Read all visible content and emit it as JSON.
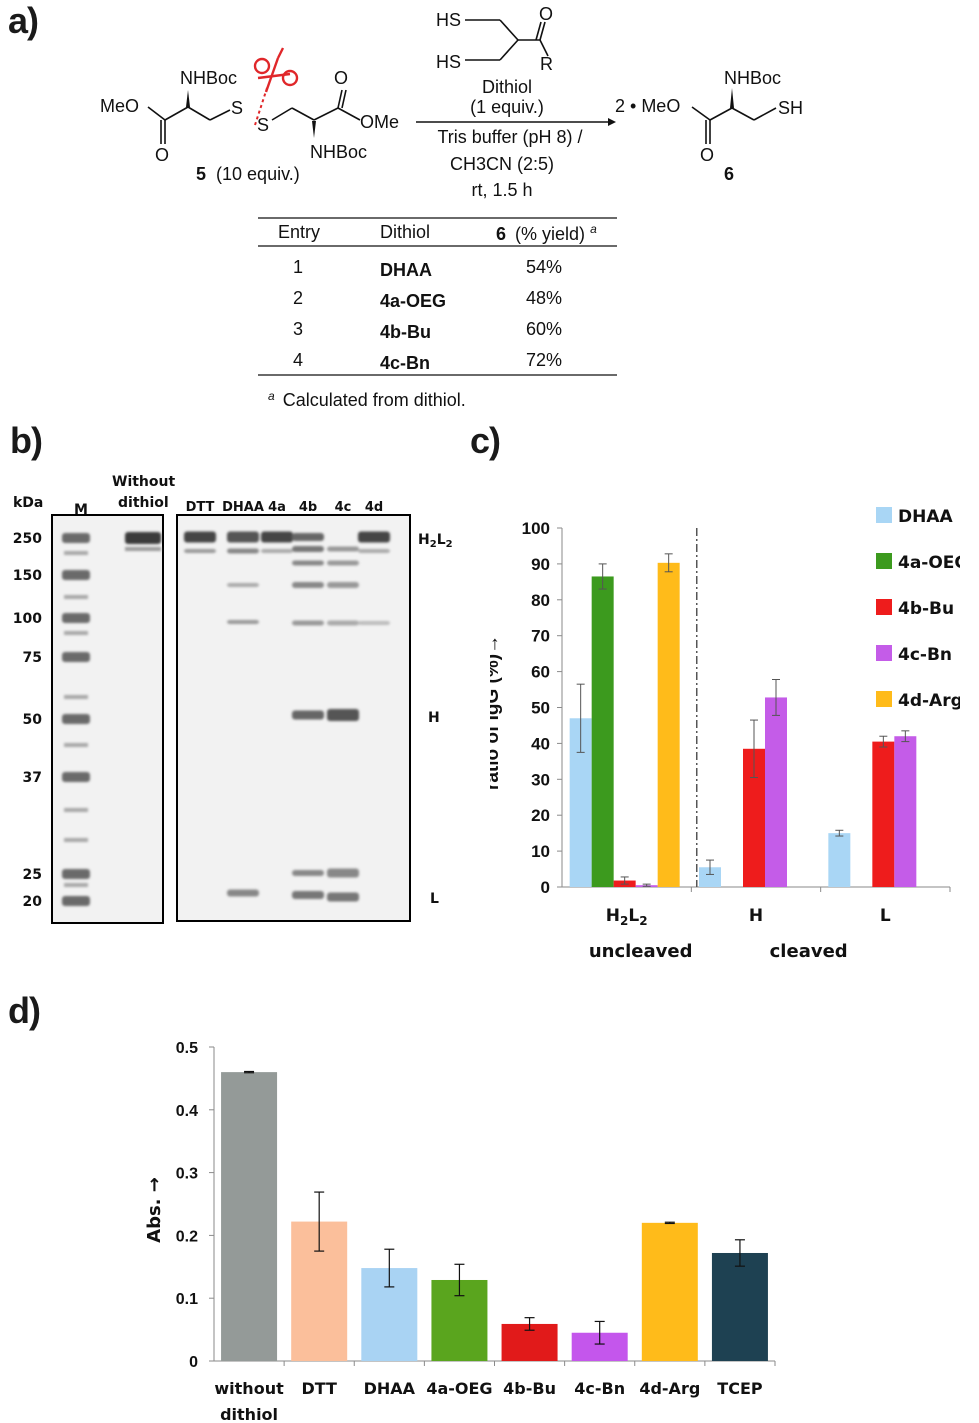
{
  "panels": {
    "a": "a)",
    "b": "b)",
    "c": "c)",
    "d": "d)"
  },
  "scheme": {
    "reactant_label": "5",
    "reactant_equiv": "(10 equiv.)",
    "reactant_groups": {
      "meo": "MeO",
      "ome": "OMe",
      "nhboc": "NHBoc",
      "o": "O",
      "s": "S"
    },
    "reagent_groups": {
      "hs": "HS",
      "o": "O",
      "r": "R"
    },
    "reagent_lines": [
      "Dithiol",
      "(1 equiv.)",
      "Tris buffer (pH 8) /",
      "CH3CN (2:5)",
      "rt, 1.5 h"
    ],
    "product_coef": "2 • MeO",
    "product_label": "6",
    "product_groups": {
      "nhboc": "NHBoc",
      "sh": "SH",
      "o": "O"
    },
    "table": {
      "headers": [
        "Entry",
        "Dithiol",
        "6",
        "(% yield)",
        "a"
      ],
      "rows": [
        {
          "entry": "1",
          "dithiol": "DHAA",
          "yield": "54%"
        },
        {
          "entry": "2",
          "dithiol": "4a-OEG",
          "yield": "48%"
        },
        {
          "entry": "3",
          "dithiol": "4b-Bu",
          "yield": "60%"
        },
        {
          "entry": "4",
          "dithiol": "4c-Bn",
          "yield": "72%"
        }
      ],
      "footnote_mark": "a",
      "footnote": "Calculated from dithiol."
    }
  },
  "gel": {
    "kda_label": "kDa",
    "marker_label": "M",
    "without_label_1": "Without",
    "without_label_2": "dithiol",
    "lanes": [
      "DTT",
      "DHAA",
      "4a",
      "4b",
      "4c",
      "4d"
    ],
    "mw_markers": [
      "250",
      "150",
      "100",
      "75",
      "50",
      "37",
      "25",
      "20"
    ],
    "band_labels": {
      "h2l2": "H2L2",
      "h": "H",
      "l": "L"
    }
  },
  "chart_data": [
    {
      "type": "bar",
      "panel": "c",
      "ylabel": "ratio of IgG (%)→",
      "ylim": [
        0,
        100
      ],
      "yticks": [
        0,
        10,
        20,
        30,
        40,
        50,
        60,
        70,
        80,
        90,
        100
      ],
      "categories": [
        "H2L2",
        "H",
        "L"
      ],
      "group_labels": [
        "uncleaved",
        "cleaved"
      ],
      "series": [
        {
          "name": "DHAA",
          "color": "#a9d6f5",
          "values": [
            47,
            5.5,
            15
          ],
          "errors": [
            9.5,
            2,
            0.8
          ]
        },
        {
          "name": "4a-OEG",
          "color": "#3c9a1e",
          "values": [
            86.5,
            0,
            0
          ],
          "errors": [
            3.5,
            0,
            0
          ]
        },
        {
          "name": "4b-Bu",
          "color": "#ee1c1c",
          "values": [
            1.8,
            38.5,
            40.5
          ],
          "errors": [
            1,
            8,
            1.5
          ]
        },
        {
          "name": "4c-Bn",
          "color": "#c45ce8",
          "values": [
            0.5,
            52.8,
            42
          ],
          "errors": [
            0.3,
            5,
            1.5
          ]
        },
        {
          "name": "4d-Arg",
          "color": "#ffbb1a",
          "values": [
            90.3,
            0,
            0
          ],
          "errors": [
            2.5,
            0,
            0
          ]
        }
      ],
      "legend": "right",
      "grid": false
    },
    {
      "type": "bar",
      "panel": "d",
      "ylabel": "Abs. →",
      "ylim": [
        0,
        0.5
      ],
      "yticks": [
        "0",
        "0.1",
        "0.2",
        "0.3",
        "0.4",
        "0.5"
      ],
      "categories": [
        "without dithiol",
        "DTT",
        "DHAA",
        "4a-OEG",
        "4b-Bu",
        "4c-Bn",
        "4d-Arg",
        "TCEP"
      ],
      "values": [
        0.46,
        0.222,
        0.148,
        0.129,
        0.059,
        0.045,
        0.22,
        0.172
      ],
      "errors": [
        0.001,
        0.047,
        0.03,
        0.025,
        0.01,
        0.018,
        0.001,
        0.021
      ],
      "colors": [
        "#949a98",
        "#fbbf9b",
        "#a9d3f3",
        "#5aa51e",
        "#e11a1a",
        "#c456ec",
        "#ffbb1a",
        "#1e4152"
      ],
      "grid": false
    }
  ]
}
